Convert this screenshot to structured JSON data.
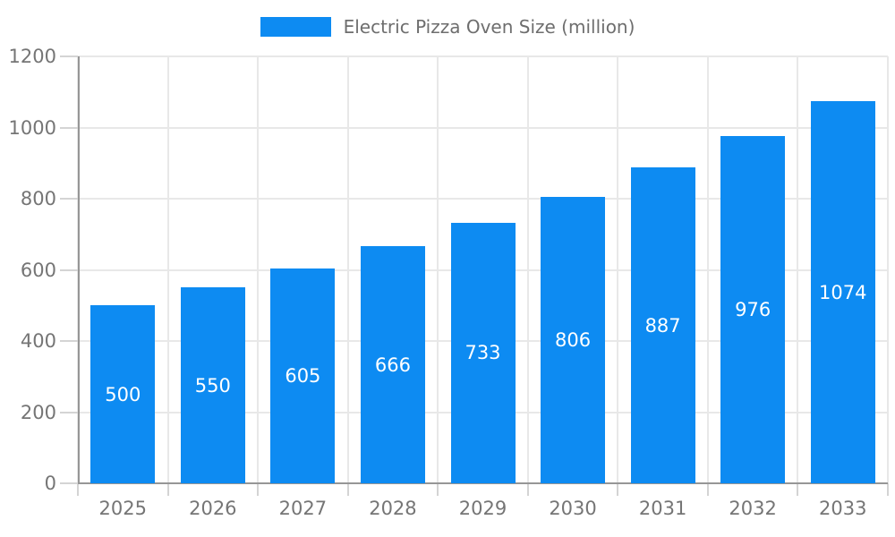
{
  "chart_data": {
    "type": "bar",
    "title": "Electric Pizza Oven Size (million)",
    "categories": [
      "2025",
      "2026",
      "2027",
      "2028",
      "2029",
      "2030",
      "2031",
      "2032",
      "2033"
    ],
    "values": [
      500,
      550,
      605,
      666,
      733,
      806,
      887,
      976,
      1074
    ],
    "bar_labels": [
      "500",
      "550",
      "605",
      "666",
      "733",
      "806",
      "887",
      "976",
      "1074"
    ],
    "xlabel": "",
    "ylabel": "",
    "ylim": [
      0,
      1200
    ],
    "y_ticks": [
      0,
      200,
      400,
      600,
      800,
      1000,
      1200
    ],
    "y_tick_labels": [
      "0",
      "200",
      "400",
      "600",
      "800",
      "1000",
      "1200"
    ],
    "grid": true,
    "legend_position": "top",
    "colors": {
      "bar": "#0d8bf2",
      "bar_value_text": "#ffffff",
      "axis_text": "#757575",
      "legend_text": "#6e6e6e"
    }
  }
}
